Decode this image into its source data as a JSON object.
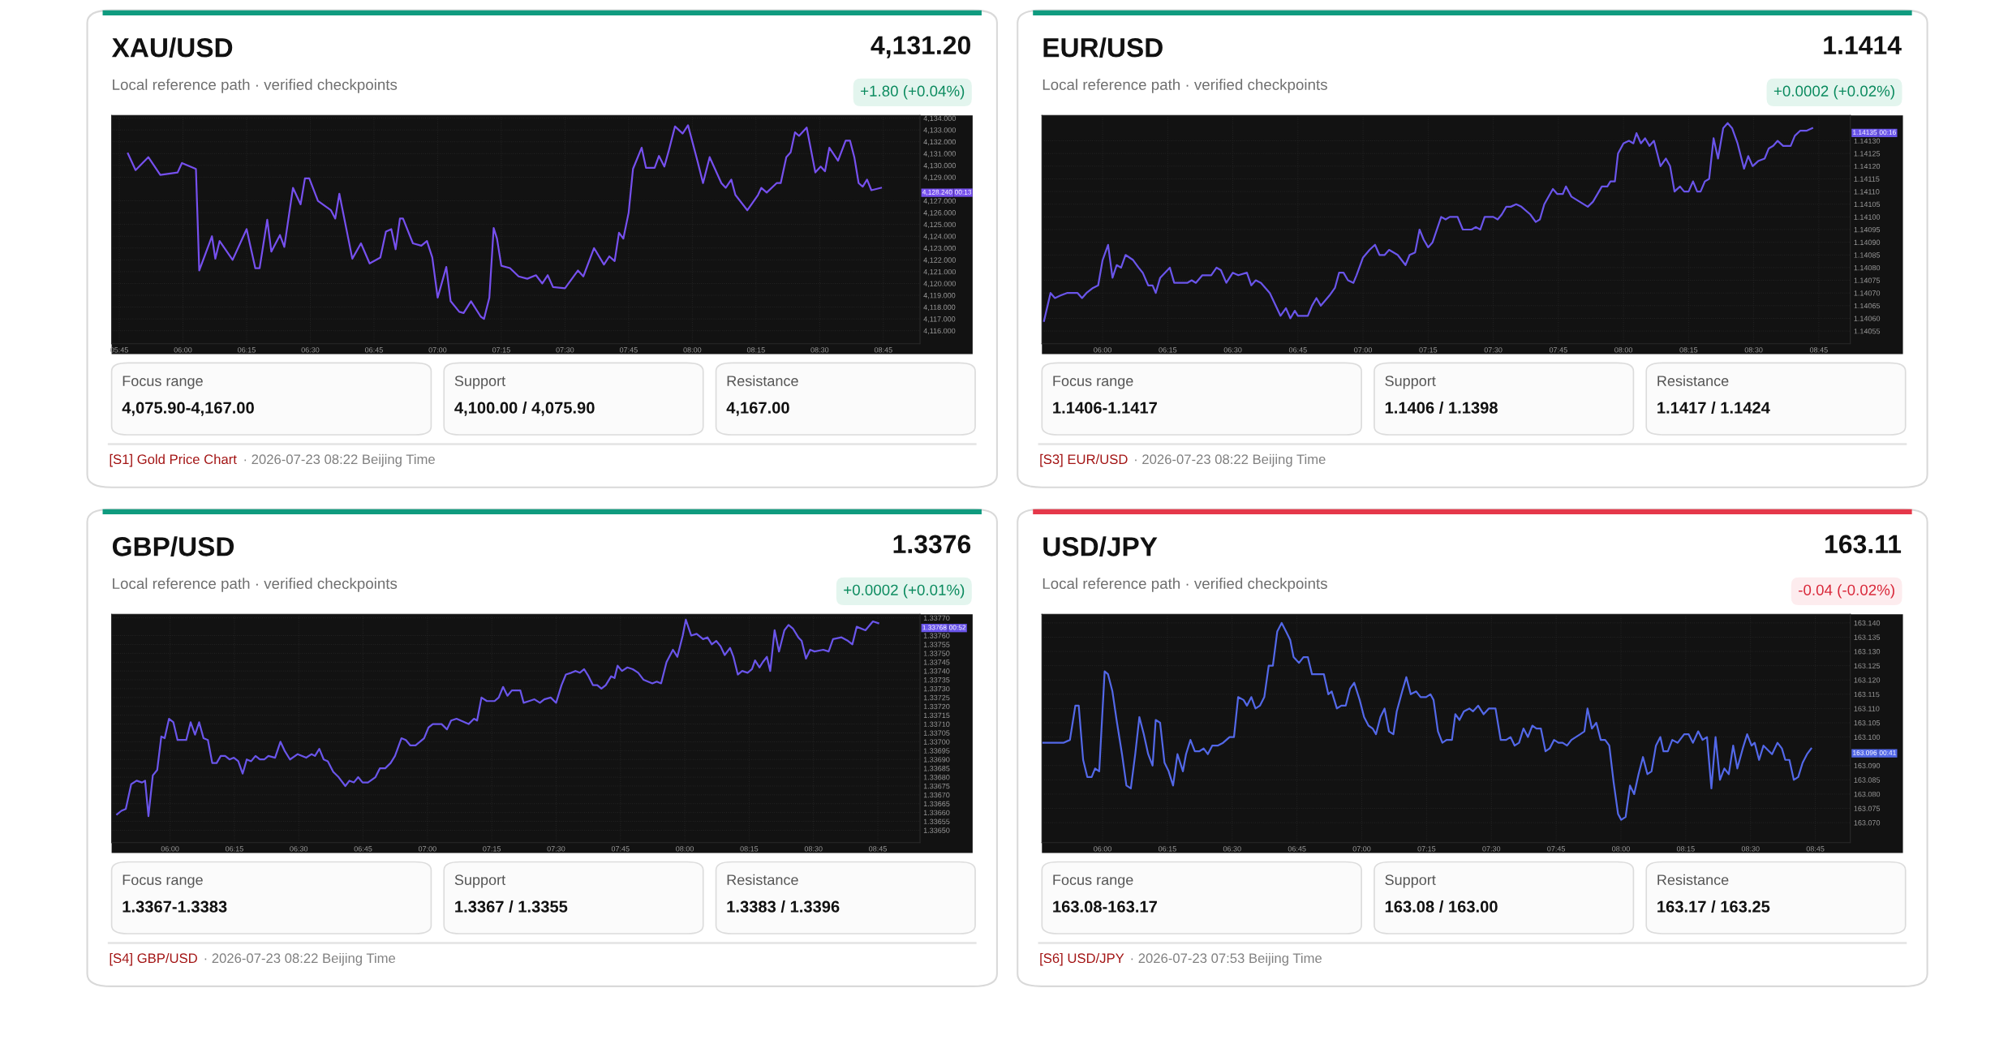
{
  "chart_data": [
    {
      "type": "line",
      "title": "XAU/USD",
      "subtitle": "Local reference path · verified checkpoints",
      "grid": true,
      "marker": "none",
      "line_style": "solid",
      "xlim": [
        5.72,
        8.894
      ],
      "ylim": [
        4114.9,
        4134.23
      ],
      "xticks": [
        {
          "value": 5.75,
          "label": "05:45"
        },
        {
          "value": 6,
          "label": "06:00"
        },
        {
          "value": 6.25,
          "label": "06:15"
        },
        {
          "value": 6.5,
          "label": "06:30"
        },
        {
          "value": 6.75,
          "label": "06:45"
        },
        {
          "value": 7,
          "label": "07:00"
        },
        {
          "value": 7.25,
          "label": "07:15"
        },
        {
          "value": 7.5,
          "label": "07:30"
        },
        {
          "value": 7.75,
          "label": "07:45"
        },
        {
          "value": 8,
          "label": "08:00"
        },
        {
          "value": 8.25,
          "label": "08:15"
        },
        {
          "value": 8.5,
          "label": "08:30"
        },
        {
          "value": 8.75,
          "label": "08:45"
        }
      ],
      "yticks": [
        {
          "value": 4116,
          "label": "4,116.000"
        },
        {
          "value": 4117,
          "label": "4,117.000"
        },
        {
          "value": 4118,
          "label": "4,118.000"
        },
        {
          "value": 4119,
          "label": "4,119.000"
        },
        {
          "value": 4120,
          "label": "4,120.000"
        },
        {
          "value": 4121,
          "label": "4,121.000"
        },
        {
          "value": 4122,
          "label": "4,122.000"
        },
        {
          "value": 4123,
          "label": "4,123.000"
        },
        {
          "value": 4124,
          "label": "4,124.000"
        },
        {
          "value": 4125,
          "label": "4,125.000"
        },
        {
          "value": 4126,
          "label": "4,126.000"
        },
        {
          "value": 4127,
          "label": "4,127.000"
        },
        {
          "value": 4129,
          "label": "4,129.000"
        },
        {
          "value": 4130,
          "label": "4,130.000"
        },
        {
          "value": 4131,
          "label": "4,131.000"
        },
        {
          "value": 4132,
          "label": "4,132.000"
        },
        {
          "value": 4133,
          "label": "4,133.000"
        },
        {
          "value": 4134,
          "label": "4,134.000"
        }
      ],
      "series": [
        {
          "color": "#7650ee",
          "x": [
            5.784,
            5.814,
            5.864,
            5.911,
            5.979,
            5.996,
            6.051,
            6.064,
            6.114,
            6.127,
            6.144,
            6.195,
            6.25,
            6.284,
            6.301,
            6.331,
            6.347,
            6.381,
            6.398,
            6.432,
            6.462,
            6.479,
            6.496,
            6.53,
            6.581,
            6.598,
            6.614,
            6.665,
            6.699,
            6.733,
            6.775,
            6.797,
            6.818,
            6.835,
            6.852,
            6.864,
            6.903,
            6.936,
            6.958,
            6.979,
            7.0,
            7.034,
            7.051,
            7.085,
            7.102,
            7.131,
            7.169,
            7.182,
            7.203,
            7.22,
            7.233,
            7.25,
            7.284,
            7.318,
            7.352,
            7.386,
            7.411,
            7.432,
            7.453,
            7.5,
            7.551,
            7.572,
            7.614,
            7.653,
            7.674,
            7.695,
            7.712,
            7.729,
            7.75,
            7.767,
            7.801,
            7.818,
            7.852,
            7.869,
            7.89,
            7.907,
            7.932,
            7.962,
            7.983,
            8.021,
            8.042,
            8.068,
            8.114,
            8.131,
            8.153,
            8.169,
            8.216,
            8.258,
            8.271,
            8.292,
            8.331,
            8.347,
            8.369,
            8.386,
            8.403,
            8.419,
            8.449,
            8.483,
            8.504,
            8.521,
            8.538,
            8.572,
            8.602,
            8.619,
            8.636,
            8.653,
            8.669,
            8.686,
            8.703,
            8.741
          ],
          "values": [
            4131.0,
            4129.6,
            4130.7,
            4129.2,
            4129.4,
            4130.2,
            4129.7,
            4121.1,
            4124.0,
            4122.1,
            4123.6,
            4122.0,
            4124.6,
            4121.3,
            4121.3,
            4125.4,
            4122.7,
            4124.1,
            4123.1,
            4128.1,
            4126.7,
            4128.9,
            4128.9,
            4127.0,
            4126.2,
            4125.5,
            4127.6,
            4122.1,
            4123.4,
            4121.7,
            4122.2,
            4124.4,
            4124.6,
            4122.9,
            4125.5,
            4125.5,
            4123.4,
            4123.2,
            4123.6,
            4122.2,
            4118.8,
            4121.4,
            4118.5,
            4117.6,
            4117.5,
            4118.5,
            4117.2,
            4117.0,
            4118.8,
            4124.7,
            4123.8,
            4121.5,
            4121.3,
            4120.6,
            4120.4,
            4120.7,
            4120.0,
            4120.7,
            4119.7,
            4119.6,
            4121.1,
            4120.6,
            4123.0,
            4121.6,
            4122.3,
            4121.9,
            4124.3,
            4123.8,
            4126.0,
            4129.7,
            4131.5,
            4129.8,
            4129.8,
            4130.8,
            4129.9,
            4131.2,
            4133.3,
            4132.7,
            4133.4,
            4130.3,
            4128.5,
            4130.7,
            4128.5,
            4128.1,
            4128.8,
            4127.5,
            4126.2,
            4127.5,
            4128.1,
            4127.7,
            4128.5,
            4128.5,
            4130.7,
            4131.1,
            4132.8,
            4132.5,
            4133.2,
            4129.4,
            4129.9,
            4129.5,
            4131.5,
            4130.4,
            4132.1,
            4132.1,
            4130.7,
            4128.5,
            4128.2,
            4128.8,
            4127.9,
            4128.1
          ]
        }
      ],
      "annotations": [
        "4,131.20",
        "+1.80 (+0.04%)",
        "Focus range",
        "4,075.90-4,167.00",
        "Support",
        "4,100.00 / 4,075.90",
        "Resistance",
        "4,167.00",
        "[S1] Gold Price Chart",
        "· 2026-07-23 08:22 Beijing Time",
        "4,128.240\n00:13"
      ]
    },
    {
      "type": "line",
      "title": "EUR/USD",
      "subtitle": "Local reference path · verified checkpoints",
      "grid": true,
      "marker": "none",
      "line_style": "solid",
      "xlim": [
        5.767,
        8.871
      ],
      "ylim": [
        1.1405,
        1.1414
      ],
      "xticks": [
        {
          "value": 6,
          "label": "06:00"
        },
        {
          "value": 6.25,
          "label": "06:15"
        },
        {
          "value": 6.5,
          "label": "06:30"
        },
        {
          "value": 6.75,
          "label": "06:45"
        },
        {
          "value": 7,
          "label": "07:00"
        },
        {
          "value": 7.25,
          "label": "07:15"
        },
        {
          "value": 7.5,
          "label": "07:30"
        },
        {
          "value": 7.75,
          "label": "07:45"
        },
        {
          "value": 8,
          "label": "08:00"
        },
        {
          "value": 8.25,
          "label": "08:15"
        },
        {
          "value": 8.5,
          "label": "08:30"
        },
        {
          "value": 8.75,
          "label": "08:45"
        }
      ],
      "yticks": [
        {
          "value": 1.14055,
          "label": "1.14055"
        },
        {
          "value": 1.1406,
          "label": "1.14060"
        },
        {
          "value": 1.14065,
          "label": "1.14065"
        },
        {
          "value": 1.1407,
          "label": "1.14070"
        },
        {
          "value": 1.14075,
          "label": "1.14075"
        },
        {
          "value": 1.1408,
          "label": "1.14080"
        },
        {
          "value": 1.14085,
          "label": "1.14085"
        },
        {
          "value": 1.1409,
          "label": "1.14090"
        },
        {
          "value": 1.14095,
          "label": "1.14095"
        },
        {
          "value": 1.141,
          "label": "1.14100"
        },
        {
          "value": 1.14105,
          "label": "1.14105"
        },
        {
          "value": 1.1411,
          "label": "1.14110"
        },
        {
          "value": 1.14115,
          "label": "1.14115"
        },
        {
          "value": 1.1412,
          "label": "1.14120"
        },
        {
          "value": 1.14125,
          "label": "1.14125"
        },
        {
          "value": 1.1413,
          "label": "1.14130"
        }
      ],
      "series": [
        {
          "color": "#6a55ea",
          "x": [
            5.775,
            5.8,
            5.817,
            5.838,
            5.863,
            5.904,
            5.921,
            5.938,
            5.963,
            5.983,
            6.0,
            6.021,
            6.038,
            6.054,
            6.071,
            6.088,
            6.117,
            6.138,
            6.154,
            6.175,
            6.192,
            6.204,
            6.221,
            6.258,
            6.275,
            6.325,
            6.342,
            6.358,
            6.383,
            6.417,
            6.4375,
            6.454,
            6.475,
            6.5,
            6.521,
            6.554,
            6.571,
            6.588,
            6.608,
            6.642,
            6.683,
            6.704,
            6.721,
            6.738,
            6.75,
            6.788,
            6.804,
            6.821,
            6.838,
            6.871,
            6.892,
            6.908,
            6.925,
            6.942,
            6.963,
            6.975,
            7.0,
            7.025,
            7.046,
            7.063,
            7.083,
            7.1,
            7.133,
            7.163,
            7.179,
            7.2,
            7.217,
            7.233,
            7.25,
            7.267,
            7.3,
            7.317,
            7.333,
            7.363,
            7.383,
            7.417,
            7.433,
            7.45,
            7.467,
            7.5,
            7.517,
            7.533,
            7.55,
            7.567,
            7.588,
            7.608,
            7.642,
            7.663,
            7.679,
            7.696,
            7.729,
            7.746,
            7.767,
            7.779,
            7.8,
            7.863,
            7.883,
            7.917,
            7.938,
            7.95,
            7.967,
            7.979,
            8.0,
            8.021,
            8.038,
            8.05,
            8.067,
            8.083,
            8.1,
            8.117,
            8.142,
            8.163,
            8.179,
            8.196,
            8.217,
            8.233,
            8.25,
            8.267,
            8.283,
            8.296,
            8.3125,
            8.329,
            8.346,
            8.363,
            8.383,
            8.4,
            8.417,
            8.438,
            8.463,
            8.479,
            8.496,
            8.517,
            8.542,
            8.558,
            8.575,
            8.592,
            8.613,
            8.642,
            8.658,
            8.679,
            8.704,
            8.725
          ],
          "values": [
            1.14059,
            1.1407,
            1.14068,
            1.14069,
            1.1407,
            1.1407,
            1.14068,
            1.1407,
            1.14072,
            1.14073,
            1.14083,
            1.14089,
            1.14076,
            1.14081,
            1.1408,
            1.14085,
            1.14083,
            1.1408,
            1.14078,
            1.14073,
            1.14073,
            1.1407,
            1.14076,
            1.1408,
            1.14074,
            1.14074,
            1.14075,
            1.14074,
            1.14077,
            1.14077,
            1.1408,
            1.14079,
            1.14074,
            1.14078,
            1.14077,
            1.14078,
            1.14073,
            1.14075,
            1.14074,
            1.1407,
            1.14061,
            1.14064,
            1.1406,
            1.14063,
            1.14061,
            1.14061,
            1.14065,
            1.14068,
            1.14065,
            1.14069,
            1.14072,
            1.14078,
            1.14078,
            1.14075,
            1.14074,
            1.14077,
            1.14084,
            1.14087,
            1.14089,
            1.14085,
            1.14085,
            1.14087,
            1.14085,
            1.14081,
            1.14085,
            1.14086,
            1.14095,
            1.14091,
            1.14088,
            1.1409,
            1.141,
            1.14099,
            1.141,
            1.141,
            1.14095,
            1.14095,
            1.14096,
            1.14095,
            1.141,
            1.141,
            1.14099,
            1.14101,
            1.14104,
            1.14104,
            1.14105,
            1.14104,
            1.14101,
            1.14098,
            1.14099,
            1.14105,
            1.14111,
            1.14109,
            1.14109,
            1.14112,
            1.14108,
            1.14104,
            1.14106,
            1.14112,
            1.14112,
            1.14114,
            1.14114,
            1.14125,
            1.14129,
            1.1413,
            1.14129,
            1.14133,
            1.14129,
            1.14131,
            1.14128,
            1.1413,
            1.1412,
            1.14123,
            1.1412,
            1.1411,
            1.14112,
            1.1411,
            1.1411,
            1.14114,
            1.1411,
            1.1411,
            1.14114,
            1.14115,
            1.14131,
            1.14123,
            1.14135,
            1.14137,
            1.14135,
            1.14129,
            1.14119,
            1.14124,
            1.1412,
            1.14122,
            1.14123,
            1.14127,
            1.14128,
            1.1413,
            1.14128,
            1.14128,
            1.14132,
            1.14134,
            1.14134,
            1.14135
          ]
        }
      ],
      "annotations": [
        "1.1414",
        "+0.0002 (+0.02%)",
        "Focus range",
        "1.1406-1.1417",
        "Support",
        "1.1406 / 1.1398",
        "Resistance",
        "1.1417 / 1.1424",
        "[S3] EUR/USD",
        "· 2026-07-23 08:22 Beijing Time",
        "1.14135\n00:16"
      ]
    },
    {
      "type": "line",
      "title": "GBP/USD",
      "subtitle": "Local reference path · verified checkpoints",
      "grid": true,
      "marker": "none",
      "line_style": "solid",
      "xlim": [
        5.773,
        8.914
      ],
      "ylim": [
        1.33643,
        1.33772
      ],
      "xticks": [
        {
          "value": 6,
          "label": "06:00"
        },
        {
          "value": 6.25,
          "label": "06:15"
        },
        {
          "value": 6.5,
          "label": "06:30"
        },
        {
          "value": 6.75,
          "label": "06:45"
        },
        {
          "value": 7,
          "label": "07:00"
        },
        {
          "value": 7.25,
          "label": "07:15"
        },
        {
          "value": 7.5,
          "label": "07:30"
        },
        {
          "value": 7.75,
          "label": "07:45"
        },
        {
          "value": 8,
          "label": "08:00"
        },
        {
          "value": 8.25,
          "label": "08:15"
        },
        {
          "value": 8.5,
          "label": "08:30"
        },
        {
          "value": 8.75,
          "label": "08:45"
        }
      ],
      "yticks": [
        {
          "value": 1.3365,
          "label": "1.33650"
        },
        {
          "value": 1.33655,
          "label": "1.33655"
        },
        {
          "value": 1.3366,
          "label": "1.33660"
        },
        {
          "value": 1.33665,
          "label": "1.33665"
        },
        {
          "value": 1.3367,
          "label": "1.33670"
        },
        {
          "value": 1.33675,
          "label": "1.33675"
        },
        {
          "value": 1.3368,
          "label": "1.33680"
        },
        {
          "value": 1.33685,
          "label": "1.33685"
        },
        {
          "value": 1.3369,
          "label": "1.33690"
        },
        {
          "value": 1.33695,
          "label": "1.33695"
        },
        {
          "value": 1.337,
          "label": "1.33700"
        },
        {
          "value": 1.33705,
          "label": "1.33705"
        },
        {
          "value": 1.3371,
          "label": "1.33710"
        },
        {
          "value": 1.33715,
          "label": "1.33715"
        },
        {
          "value": 1.3372,
          "label": "1.33720"
        },
        {
          "value": 1.33725,
          "label": "1.33725"
        },
        {
          "value": 1.3373,
          "label": "1.33730"
        },
        {
          "value": 1.33735,
          "label": "1.33735"
        },
        {
          "value": 1.3374,
          "label": "1.33740"
        },
        {
          "value": 1.33745,
          "label": "1.33745"
        },
        {
          "value": 1.3375,
          "label": "1.33750"
        },
        {
          "value": 1.33755,
          "label": "1.33755"
        },
        {
          "value": 1.3376,
          "label": "1.33760"
        },
        {
          "value": 1.3377,
          "label": "1.33770"
        }
      ],
      "series": [
        {
          "color": "#6a55ea",
          "x": [
            5.794,
            5.811,
            5.828,
            5.849,
            5.87,
            5.891,
            5.903,
            5.916,
            5.933,
            5.95,
            5.966,
            5.979,
            5.996,
            6.013,
            6.029,
            6.063,
            6.08,
            6.097,
            6.113,
            6.13,
            6.147,
            6.164,
            6.181,
            6.197,
            6.214,
            6.231,
            6.248,
            6.265,
            6.282,
            6.298,
            6.315,
            6.332,
            6.349,
            6.366,
            6.382,
            6.408,
            6.429,
            6.445,
            6.466,
            6.496,
            6.529,
            6.55,
            6.563,
            6.58,
            6.597,
            6.613,
            6.634,
            6.655,
            6.681,
            6.697,
            6.714,
            6.731,
            6.748,
            6.769,
            6.798,
            6.815,
            6.836,
            6.857,
            6.874,
            6.899,
            6.916,
            6.933,
            6.954,
            6.971,
            6.987,
            7.004,
            7.021,
            7.055,
            7.076,
            7.092,
            7.113,
            7.16,
            7.181,
            7.193,
            7.21,
            7.231,
            7.261,
            7.277,
            7.294,
            7.311,
            7.328,
            7.361,
            7.374,
            7.395,
            7.416,
            7.437,
            7.454,
            7.479,
            7.5,
            7.521,
            7.538,
            7.559,
            7.576,
            7.592,
            7.609,
            7.626,
            7.643,
            7.66,
            7.676,
            7.693,
            7.714,
            7.727,
            7.739,
            7.756,
            7.777,
            7.798,
            7.819,
            7.84,
            7.874,
            7.891,
            7.908,
            7.929,
            7.954,
            7.971,
            7.992,
            8.004,
            8.025,
            8.046,
            8.071,
            8.088,
            8.105,
            8.122,
            8.139,
            8.155,
            8.176,
            8.189,
            8.206,
            8.223,
            8.244,
            8.261,
            8.273,
            8.29,
            8.303,
            8.319,
            8.332,
            8.349,
            8.366,
            8.387,
            8.403,
            8.42,
            8.441,
            8.454,
            8.471,
            8.487,
            8.504,
            8.538,
            8.559,
            8.576,
            8.609,
            8.634,
            8.651,
            8.668,
            8.702,
            8.731,
            8.752
          ],
          "values": [
            1.33659,
            1.33661,
            1.33662,
            1.33676,
            1.33678,
            1.33677,
            1.33678,
            1.33658,
            1.33681,
            1.33684,
            1.33703,
            1.33702,
            1.33713,
            1.33711,
            1.33701,
            1.33701,
            1.33711,
            1.33704,
            1.33711,
            1.33702,
            1.33701,
            1.33688,
            1.33688,
            1.33692,
            1.33692,
            1.3369,
            1.33691,
            1.33689,
            1.33682,
            1.3369,
            1.33689,
            1.33692,
            1.3369,
            1.3369,
            1.33692,
            1.33691,
            1.337,
            1.33695,
            1.3369,
            1.33693,
            1.33691,
            1.33693,
            1.33692,
            1.33696,
            1.3369,
            1.33689,
            1.33683,
            1.3368,
            1.33675,
            1.33678,
            1.33677,
            1.3368,
            1.33677,
            1.33677,
            1.3368,
            1.33685,
            1.33685,
            1.33688,
            1.33692,
            1.33702,
            1.33701,
            1.33698,
            1.33698,
            1.337,
            1.33702,
            1.33708,
            1.3371,
            1.3371,
            1.33707,
            1.33712,
            1.33713,
            1.3371,
            1.33713,
            1.33712,
            1.33725,
            1.33723,
            1.33723,
            1.33725,
            1.33731,
            1.33726,
            1.33729,
            1.33729,
            1.33722,
            1.33723,
            1.33724,
            1.33722,
            1.33724,
            1.33725,
            1.33722,
            1.33732,
            1.33738,
            1.33739,
            1.3374,
            1.33739,
            1.33741,
            1.33737,
            1.33732,
            1.33732,
            1.3373,
            1.33732,
            1.33737,
            1.33736,
            1.33743,
            1.3374,
            1.33742,
            1.33741,
            1.33739,
            1.33735,
            1.33733,
            1.33734,
            1.33733,
            1.33745,
            1.33752,
            1.33748,
            1.3376,
            1.33769,
            1.3376,
            1.33761,
            1.33758,
            1.33759,
            1.33755,
            1.33757,
            1.33754,
            1.33749,
            1.33753,
            1.33748,
            1.33738,
            1.3374,
            1.33739,
            1.33741,
            1.33746,
            1.33742,
            1.33745,
            1.33748,
            1.3374,
            1.33763,
            1.33751,
            1.33763,
            1.33766,
            1.33764,
            1.33759,
            1.33757,
            1.33747,
            1.33752,
            1.33751,
            1.33752,
            1.33751,
            1.33758,
            1.33759,
            1.33757,
            1.33755,
            1.33765,
            1.33763,
            1.33768,
            1.33767
          ]
        }
      ],
      "annotations": [
        "1.3376",
        "+0.0002 (+0.01%)",
        "Focus range",
        "1.3367-1.3383",
        "Support",
        "1.3367 / 1.3355",
        "Resistance",
        "1.3383 / 1.3396",
        "[S4] GBP/USD",
        "· 2026-07-23 08:22 Beijing Time",
        "1.33768\n00:52"
      ]
    },
    {
      "type": "line",
      "title": "USD/JPY",
      "subtitle": "Local reference path · verified checkpoints",
      "grid": true,
      "marker": "none",
      "line_style": "solid",
      "xlim": [
        5.766,
        8.885
      ],
      "ylim": [
        163.063,
        163.143
      ],
      "xticks": [
        {
          "value": 6,
          "label": "06:00"
        },
        {
          "value": 6.25,
          "label": "06:15"
        },
        {
          "value": 6.5,
          "label": "06:30"
        },
        {
          "value": 6.75,
          "label": "06:45"
        },
        {
          "value": 7,
          "label": "07:00"
        },
        {
          "value": 7.25,
          "label": "07:15"
        },
        {
          "value": 7.5,
          "label": "07:30"
        },
        {
          "value": 7.75,
          "label": "07:45"
        },
        {
          "value": 8,
          "label": "08:00"
        },
        {
          "value": 8.25,
          "label": "08:15"
        },
        {
          "value": 8.5,
          "label": "08:30"
        },
        {
          "value": 8.75,
          "label": "08:45"
        }
      ],
      "yticks": [
        {
          "value": 163.07,
          "label": "163.070"
        },
        {
          "value": 163.075,
          "label": "163.075"
        },
        {
          "value": 163.08,
          "label": "163.080"
        },
        {
          "value": 163.085,
          "label": "163.085"
        },
        {
          "value": 163.09,
          "label": "163.090"
        },
        {
          "value": 163.1,
          "label": "163.100"
        },
        {
          "value": 163.105,
          "label": "163.105"
        },
        {
          "value": 163.11,
          "label": "163.110"
        },
        {
          "value": 163.115,
          "label": "163.115"
        },
        {
          "value": 163.12,
          "label": "163.120"
        },
        {
          "value": 163.125,
          "label": "163.125"
        },
        {
          "value": 163.13,
          "label": "163.130"
        },
        {
          "value": 163.135,
          "label": "163.135"
        },
        {
          "value": 163.14,
          "label": "163.140"
        }
      ],
      "series": [
        {
          "color": "#5368e8",
          "x": [
            5.766,
            5.849,
            5.874,
            5.895,
            5.908,
            5.925,
            5.941,
            5.958,
            5.971,
            5.987,
            6.008,
            6.021,
            6.038,
            6.054,
            6.075,
            6.092,
            6.109,
            6.126,
            6.142,
            6.159,
            6.176,
            6.193,
            6.205,
            6.222,
            6.239,
            6.255,
            6.272,
            6.289,
            6.31,
            6.322,
            6.339,
            6.356,
            6.373,
            6.39,
            6.406,
            6.423,
            6.444,
            6.465,
            6.49,
            6.507,
            6.523,
            6.544,
            6.557,
            6.574,
            6.59,
            6.607,
            6.624,
            6.641,
            6.657,
            6.674,
            6.691,
            6.708,
            6.724,
            6.737,
            6.758,
            6.775,
            6.792,
            6.808,
            6.854,
            6.871,
            6.884,
            6.904,
            6.921,
            6.938,
            6.955,
            6.971,
            6.992,
            7.009,
            7.026,
            7.042,
            7.055,
            7.072,
            7.088,
            7.105,
            7.122,
            7.135,
            7.156,
            7.172,
            7.189,
            7.21,
            7.227,
            7.248,
            7.265,
            7.277,
            7.294,
            7.311,
            7.327,
            7.348,
            7.361,
            7.377,
            7.394,
            7.415,
            7.429,
            7.449,
            7.47,
            7.49,
            7.516,
            7.536,
            7.557,
            7.574,
            7.59,
            7.607,
            7.624,
            7.641,
            7.658,
            7.674,
            7.691,
            7.709,
            7.725,
            7.742,
            7.759,
            7.775,
            7.792,
            7.809,
            7.843,
            7.859,
            7.871,
            7.888,
            7.905,
            7.922,
            7.939,
            7.955,
            7.972,
            7.989,
            8.001,
            8.018,
            8.035,
            8.051,
            8.068,
            8.085,
            8.102,
            8.118,
            8.135,
            8.152,
            8.164,
            8.181,
            8.198,
            8.219,
            8.244,
            8.261,
            8.278,
            8.298,
            8.315,
            8.332,
            8.349,
            8.365,
            8.382,
            8.399,
            8.416,
            8.433,
            8.449,
            8.47,
            8.487,
            8.504,
            8.516,
            8.533,
            8.55,
            8.583,
            8.604,
            8.621,
            8.634,
            8.65,
            8.667,
            8.684,
            8.701,
            8.718,
            8.734
          ],
          "values": [
            163.098,
            163.098,
            163.099,
            163.111,
            163.111,
            163.092,
            163.086,
            163.086,
            163.089,
            163.088,
            163.123,
            163.122,
            163.116,
            163.106,
            163.094,
            163.083,
            163.082,
            163.094,
            163.107,
            163.101,
            163.094,
            163.09,
            163.106,
            163.105,
            163.091,
            163.088,
            163.083,
            163.094,
            163.088,
            163.094,
            163.099,
            163.095,
            163.095,
            163.096,
            163.094,
            163.097,
            163.097,
            163.098,
            163.1,
            163.1,
            163.114,
            163.113,
            163.111,
            163.114,
            163.11,
            163.111,
            163.114,
            163.125,
            163.125,
            163.137,
            163.14,
            163.137,
            163.134,
            163.128,
            163.126,
            163.128,
            163.128,
            163.122,
            163.122,
            163.115,
            163.116,
            163.11,
            163.111,
            163.111,
            163.117,
            163.119,
            163.113,
            163.107,
            163.104,
            163.103,
            163.101,
            163.107,
            163.11,
            163.102,
            163.101,
            163.109,
            163.116,
            163.121,
            163.115,
            163.116,
            163.114,
            163.114,
            163.115,
            163.113,
            163.102,
            163.098,
            163.099,
            163.099,
            163.108,
            163.106,
            163.109,
            163.11,
            163.109,
            163.111,
            163.108,
            163.11,
            163.11,
            163.099,
            163.099,
            163.1,
            163.097,
            163.098,
            163.103,
            163.1,
            163.104,
            163.103,
            163.103,
            163.095,
            163.096,
            163.099,
            163.098,
            163.098,
            163.097,
            163.099,
            163.101,
            163.102,
            163.11,
            163.103,
            163.105,
            163.099,
            163.099,
            163.097,
            163.084,
            163.073,
            163.071,
            163.072,
            163.083,
            163.08,
            163.087,
            163.093,
            163.087,
            163.088,
            163.097,
            163.1,
            163.095,
            163.095,
            163.099,
            163.098,
            163.101,
            163.101,
            163.098,
            163.102,
            163.099,
            163.1,
            163.082,
            163.1,
            163.085,
            163.089,
            163.087,
            163.097,
            163.089,
            163.096,
            163.101,
            163.097,
            163.098,
            163.092,
            163.097,
            163.094,
            163.098,
            163.096,
            163.092,
            163.092,
            163.085,
            163.086,
            163.091,
            163.094,
            163.096
          ]
        }
      ],
      "annotations": [
        "163.11",
        "-0.04 (-0.02%)",
        "Focus range",
        "163.08-163.17",
        "Support",
        "163.08 / 163.00",
        "Resistance",
        "163.17 / 163.25",
        "[S6] USD/JPY",
        "· 2026-07-23 07:53 Beijing Time",
        "163.096\n00:41"
      ]
    }
  ]
}
